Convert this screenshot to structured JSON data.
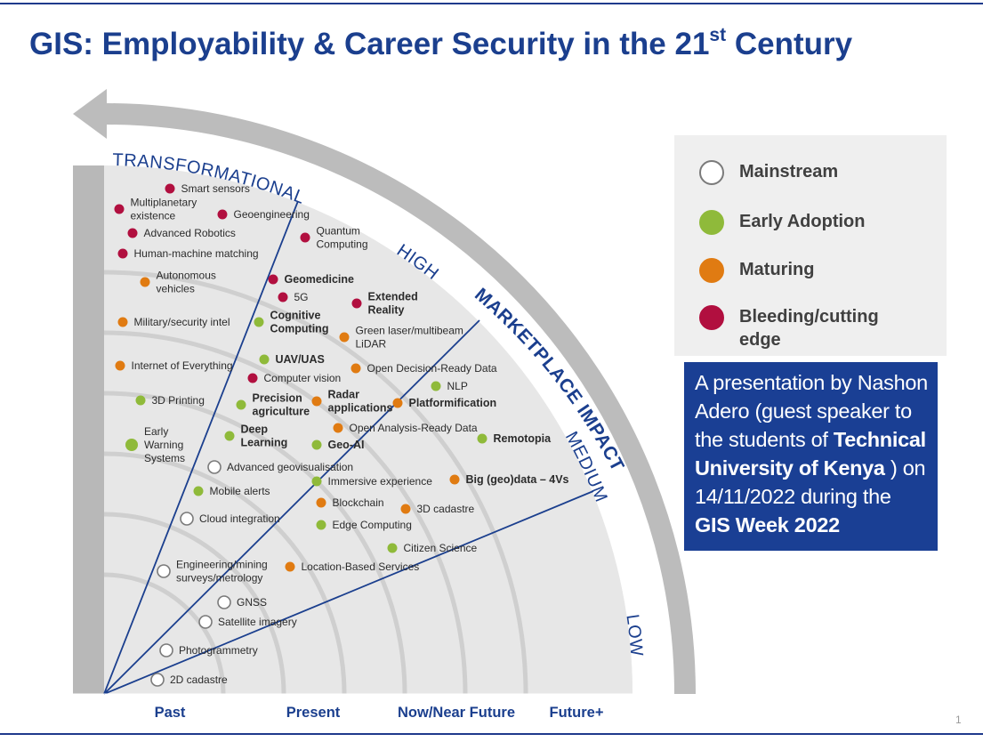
{
  "title": {
    "main": "GIS: Employability & Career Security in the 21",
    "sup": "st",
    "tail": " Century"
  },
  "radar": {
    "rings": [
      "TRANSFORMATIONAL",
      "HIGH",
      "MEDIUM",
      "LOW"
    ],
    "arrow_label": "MARKETPLACE IMPACT",
    "time_axis": [
      "Past",
      "Present",
      "Now/Near Future",
      "Future+"
    ],
    "status_colors": {
      "mainstream": "#ffffff",
      "early": "#8fba3a",
      "maturing": "#e07b12",
      "bleeding": "#b10f3f"
    },
    "items": [
      {
        "lines": [
          "Smart sensors"
        ],
        "status": "bleeding",
        "bold": false
      },
      {
        "lines": [
          "Multiplanetary",
          "existence"
        ],
        "status": "bleeding",
        "bold": false
      },
      {
        "lines": [
          "Geoengineering"
        ],
        "status": "bleeding",
        "bold": false
      },
      {
        "lines": [
          "Advanced Robotics"
        ],
        "status": "bleeding",
        "bold": false
      },
      {
        "lines": [
          "Quantum",
          "Computing"
        ],
        "status": "bleeding",
        "bold": false
      },
      {
        "lines": [
          "Human-machine matching"
        ],
        "status": "bleeding",
        "bold": false
      },
      {
        "lines": [
          "Autonomous",
          "vehicles"
        ],
        "status": "maturing",
        "bold": false
      },
      {
        "lines": [
          "Geomedicine"
        ],
        "status": "bleeding",
        "bold": true
      },
      {
        "lines": [
          "5G"
        ],
        "status": "bleeding",
        "bold": false
      },
      {
        "lines": [
          "Extended",
          "Reality"
        ],
        "status": "bleeding",
        "bold": true
      },
      {
        "lines": [
          "Military/security intel"
        ],
        "status": "maturing",
        "bold": false
      },
      {
        "lines": [
          "Cognitive",
          "Computing"
        ],
        "status": "early",
        "bold": true
      },
      {
        "lines": [
          "Green laser/multibeam",
          "LiDAR"
        ],
        "status": "maturing",
        "bold": false
      },
      {
        "lines": [
          "UAV/UAS"
        ],
        "status": "early",
        "bold": true
      },
      {
        "lines": [
          "Internet of Everything"
        ],
        "status": "maturing",
        "bold": false
      },
      {
        "lines": [
          "Open Decision-Ready Data"
        ],
        "status": "maturing",
        "bold": false
      },
      {
        "lines": [
          "Computer vision"
        ],
        "status": "bleeding",
        "bold": false
      },
      {
        "lines": [
          "NLP"
        ],
        "status": "early",
        "bold": false
      },
      {
        "lines": [
          "3D Printing"
        ],
        "status": "early",
        "bold": false
      },
      {
        "lines": [
          "Precision",
          "agriculture"
        ],
        "status": "early",
        "bold": true
      },
      {
        "lines": [
          "Radar",
          "applications"
        ],
        "status": "maturing",
        "bold": true
      },
      {
        "lines": [
          "Platformification"
        ],
        "status": "maturing",
        "bold": true
      },
      {
        "lines": [
          "Open Analysis-Ready Data"
        ],
        "status": "maturing",
        "bold": false
      },
      {
        "lines": [
          "Early",
          "Warning",
          "Systems"
        ],
        "status": "early",
        "bold": false
      },
      {
        "lines": [
          "Deep",
          "Learning"
        ],
        "status": "early",
        "bold": true
      },
      {
        "lines": [
          "Geo-AI"
        ],
        "status": "early",
        "bold": true
      },
      {
        "lines": [
          "Remotopia"
        ],
        "status": "early",
        "bold": true
      },
      {
        "lines": [
          "Advanced geovisualisation"
        ],
        "status": "mainstream",
        "bold": false
      },
      {
        "lines": [
          "Immersive experience"
        ],
        "status": "early",
        "bold": false
      },
      {
        "lines": [
          "Big (geo)data – 4Vs"
        ],
        "status": "maturing",
        "bold": true
      },
      {
        "lines": [
          "Mobile alerts"
        ],
        "status": "early",
        "bold": false
      },
      {
        "lines": [
          "Blockchain"
        ],
        "status": "maturing",
        "bold": false
      },
      {
        "lines": [
          "3D cadastre"
        ],
        "status": "maturing",
        "bold": false
      },
      {
        "lines": [
          "Cloud integration"
        ],
        "status": "mainstream",
        "bold": false
      },
      {
        "lines": [
          "Edge Computing"
        ],
        "status": "early",
        "bold": false
      },
      {
        "lines": [
          "Citizen Science"
        ],
        "status": "early",
        "bold": false
      },
      {
        "lines": [
          "Engineering/mining",
          "surveys/metrology"
        ],
        "status": "mainstream",
        "bold": false
      },
      {
        "lines": [
          "Location-Based Services"
        ],
        "status": "maturing",
        "bold": false
      },
      {
        "lines": [
          "GNSS"
        ],
        "status": "mainstream",
        "bold": false
      },
      {
        "lines": [
          "Satellite imagery"
        ],
        "status": "mainstream",
        "bold": false
      },
      {
        "lines": [
          "Photogrammetry"
        ],
        "status": "mainstream",
        "bold": false
      },
      {
        "lines": [
          "2D cadastre"
        ],
        "status": "mainstream",
        "bold": false
      }
    ]
  },
  "legend": {
    "items": [
      {
        "label": "Mainstream",
        "color": "#ffffff",
        "border": "#7a7a7a"
      },
      {
        "label": "Early Adoption",
        "color": "#8fba3a",
        "border": "#8fba3a"
      },
      {
        "label": "Maturing",
        "color": "#e07b12",
        "border": "#e07b12"
      },
      {
        "label": "Bleeding/cutting",
        "label2": "edge",
        "color": "#b10f3f",
        "border": "#b10f3f"
      }
    ]
  },
  "presenter": {
    "l1": "A presentation by Nashon",
    "l2": "Adero (guest speaker to",
    "l3a": "the students of ",
    "l3b": "Technical",
    "l4a": "University of Kenya",
    "l4b": " ) on",
    "l5": "14/11/2022 during the",
    "l6": "GIS Week 2022"
  },
  "page_number": "1"
}
